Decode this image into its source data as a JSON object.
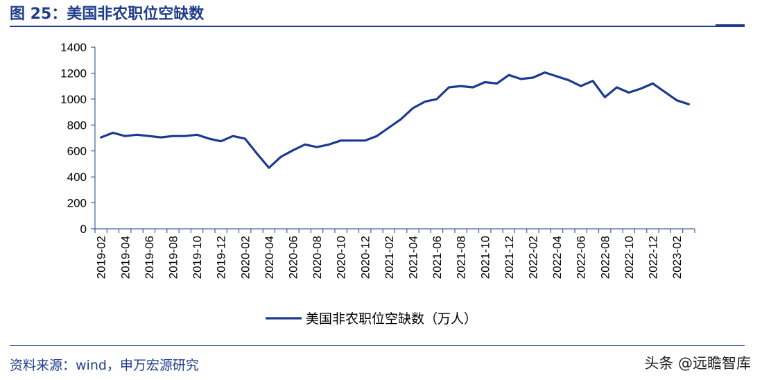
{
  "header": {
    "title": "图 25：美国非农职位空缺数"
  },
  "footer": {
    "source": "资料来源：wind，申万宏源研究",
    "watermark": "头条 @远瞻智库"
  },
  "colors": {
    "accent": "#1f3d8a",
    "series": "#1a3a8f"
  },
  "chart_data": {
    "type": "line",
    "title": "",
    "xlabel": "",
    "ylabel": "",
    "ylim": [
      0,
      1400
    ],
    "yticks": [
      "0",
      "200",
      "400",
      "600",
      "800",
      "1000",
      "1200",
      "1400"
    ],
    "x": [
      "2019-02",
      "2019-03",
      "2019-04",
      "2019-05",
      "2019-06",
      "2019-07",
      "2019-08",
      "2019-09",
      "2019-10",
      "2019-11",
      "2019-12",
      "2020-01",
      "2020-02",
      "2020-03",
      "2020-04",
      "2020-05",
      "2020-06",
      "2020-07",
      "2020-08",
      "2020-09",
      "2020-10",
      "2020-11",
      "2020-12",
      "2021-01",
      "2021-02",
      "2021-03",
      "2021-04",
      "2021-05",
      "2021-06",
      "2021-07",
      "2021-08",
      "2021-09",
      "2021-10",
      "2021-11",
      "2021-12",
      "2022-01",
      "2022-02",
      "2022-03",
      "2022-04",
      "2022-05",
      "2022-06",
      "2022-07",
      "2022-08",
      "2022-09",
      "2022-10",
      "2022-11",
      "2022-12",
      "2023-01",
      "2023-02",
      "2023-03"
    ],
    "xtick_labels": [
      "2019-02",
      "2019-04",
      "2019-06",
      "2019-08",
      "2019-10",
      "2019-12",
      "2020-02",
      "2020-04",
      "2020-06",
      "2020-08",
      "2020-10",
      "2020-12",
      "2021-02",
      "2021-04",
      "2021-06",
      "2021-08",
      "2021-10",
      "2021-12",
      "2022-02",
      "2022-04",
      "2022-06",
      "2022-08",
      "2022-10",
      "2022-12",
      "2023-02"
    ],
    "series": [
      {
        "name": "美国非农职位空缺数（万人）",
        "values": [
          705,
          740,
          715,
          725,
          715,
          705,
          715,
          715,
          725,
          695,
          675,
          715,
          695,
          580,
          470,
          555,
          605,
          650,
          630,
          650,
          680,
          680,
          680,
          715,
          780,
          845,
          930,
          980,
          1000,
          1090,
          1100,
          1090,
          1130,
          1120,
          1185,
          1155,
          1165,
          1205,
          1175,
          1145,
          1100,
          1140,
          1015,
          1090,
          1050,
          1080,
          1120,
          1055,
          990,
          960
        ]
      }
    ],
    "grid": false,
    "legend": "bottom-center"
  }
}
